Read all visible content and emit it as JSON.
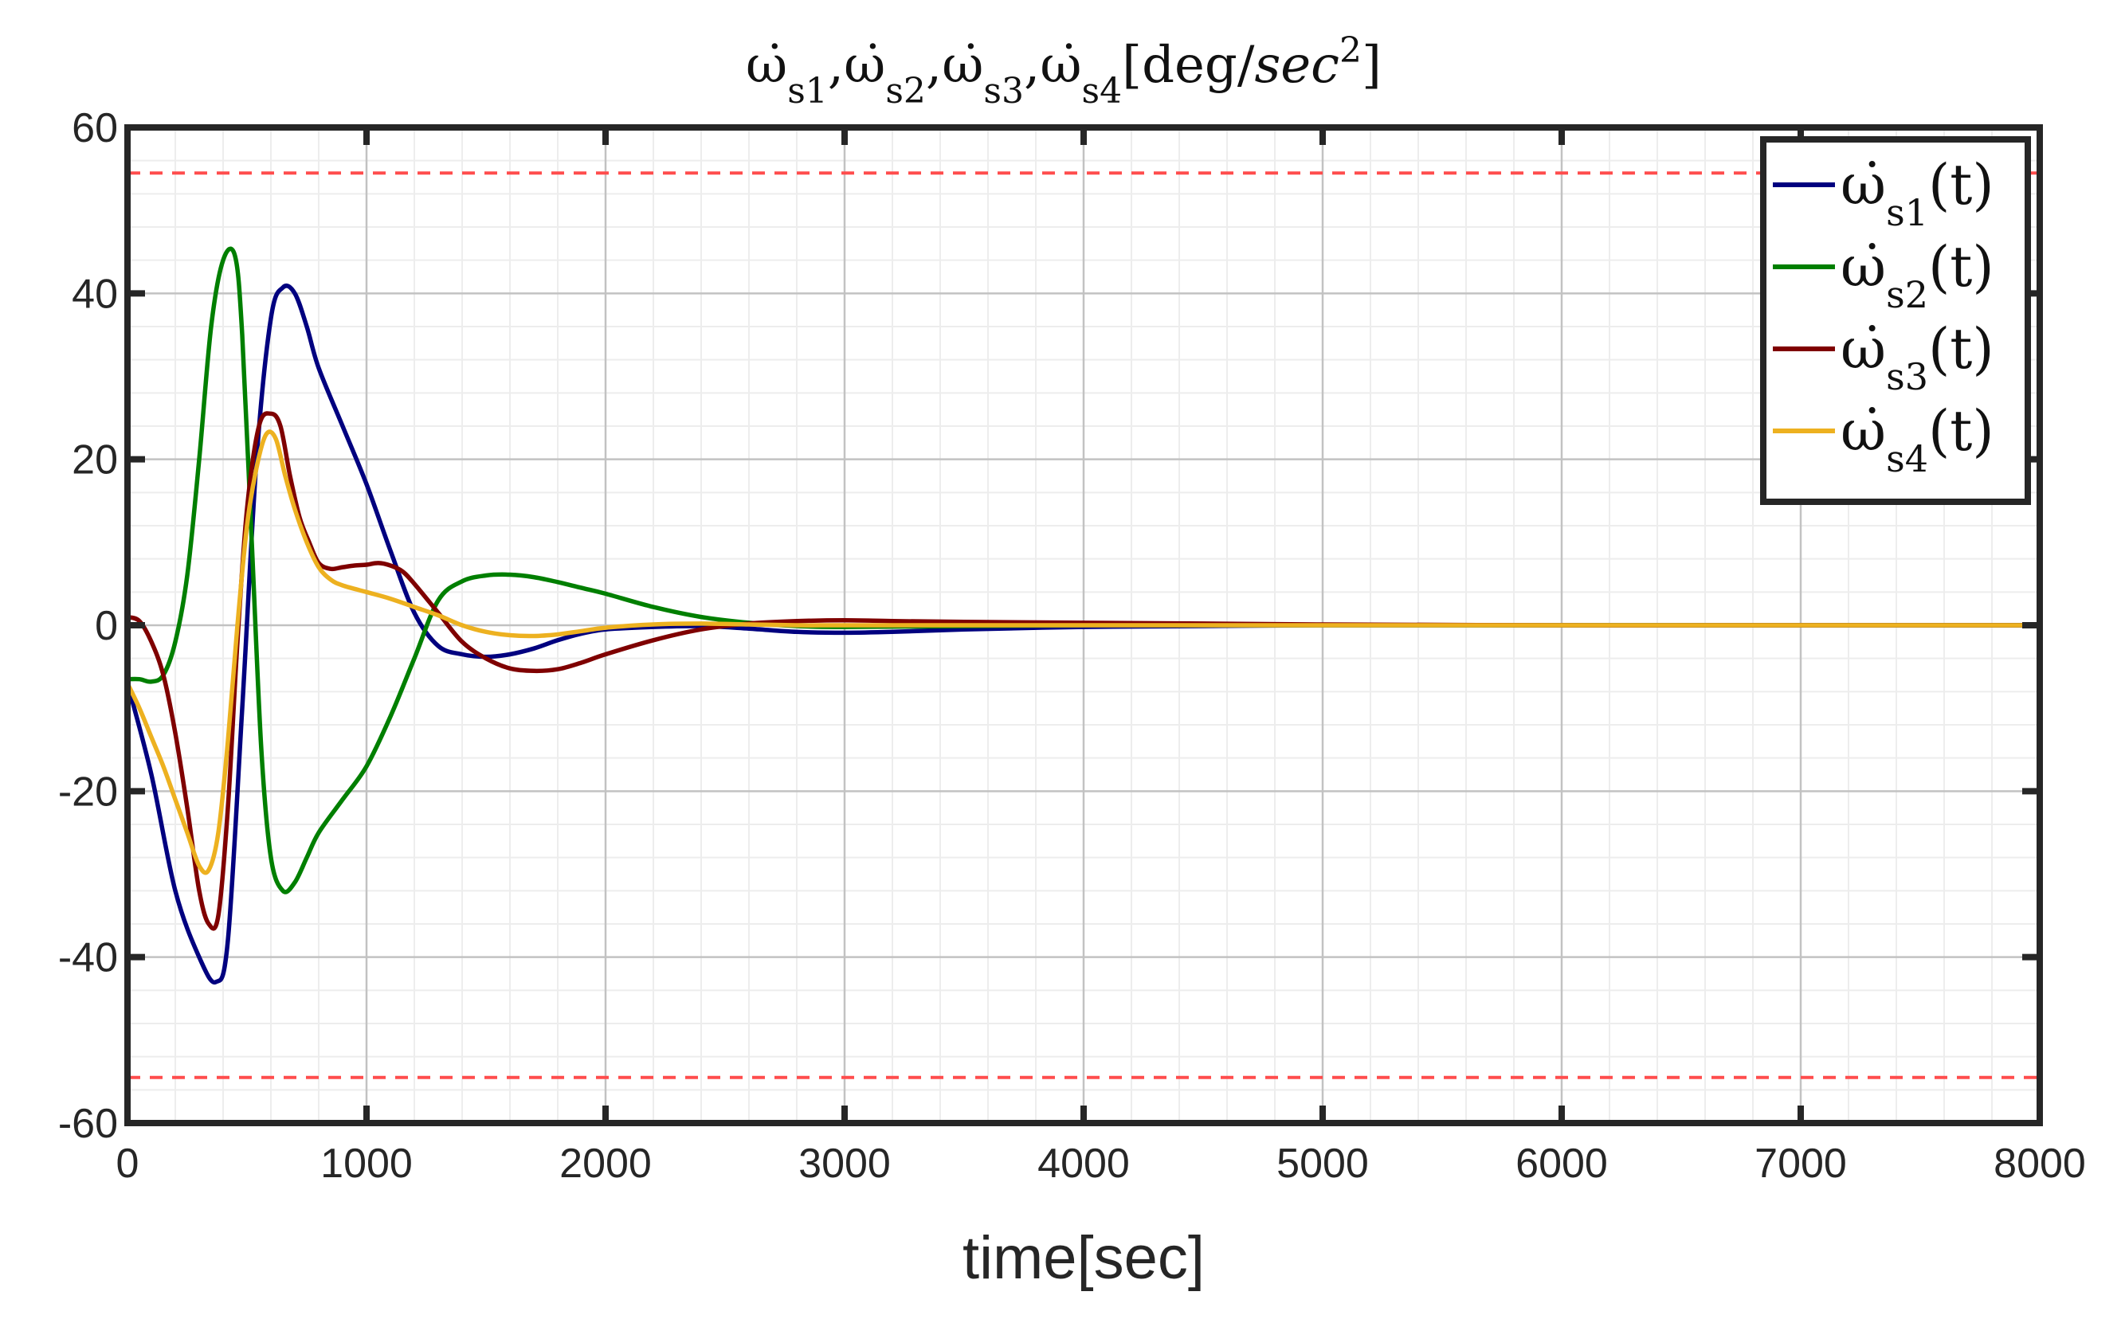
{
  "chart_data": {
    "type": "line",
    "title_parts": [
      "ω̇",
      "s1",
      ",",
      "ω̇",
      "s2",
      ",",
      "ω̇",
      "s3",
      ",",
      "ω̇",
      "s4",
      "[deg/",
      "sec",
      "2",
      "]"
    ],
    "xlabel": "time[sec]",
    "ylabel": "",
    "xlim": [
      0,
      8000
    ],
    "ylim": [
      -60,
      60
    ],
    "xticks": [
      0,
      1000,
      2000,
      3000,
      4000,
      5000,
      6000,
      7000,
      8000
    ],
    "yticks": [
      -60,
      -40,
      -20,
      0,
      20,
      40,
      60
    ],
    "grid": true,
    "minor_grid": true,
    "legend_position": "top-right",
    "limits": {
      "values": [
        54.5,
        -54.5
      ],
      "color": "#ff4d4d",
      "style": "dashed"
    },
    "series": [
      {
        "name": "ω̇_s1(t)",
        "legend_parts": [
          "ω̇",
          "s1",
          "(t)"
        ],
        "color": "#00007f",
        "x": [
          0,
          100,
          200,
          300,
          370,
          420,
          480,
          540,
          600,
          650,
          700,
          750,
          800,
          900,
          1000,
          1100,
          1200,
          1300,
          1400,
          1500,
          1600,
          1700,
          1800,
          1900,
          2000,
          2200,
          2400,
          2600,
          2800,
          3000,
          3200,
          3500,
          4000,
          4500,
          5000,
          6000,
          7000,
          8000
        ],
        "y": [
          -7,
          -18,
          -32,
          -40,
          -43,
          -38,
          -10,
          20,
          37,
          40.7,
          40,
          36,
          31,
          24,
          17,
          9,
          1.5,
          -2.5,
          -3.5,
          -3.8,
          -3.5,
          -2.8,
          -1.8,
          -1.0,
          -0.5,
          -0.2,
          -0.1,
          -0.4,
          -0.8,
          -0.9,
          -0.8,
          -0.5,
          -0.2,
          -0.1,
          0,
          0,
          0,
          0
        ]
      },
      {
        "name": "ω̇_s2(t)",
        "legend_parts": [
          "ω̇",
          "s2",
          "(t)"
        ],
        "color": "#007f00",
        "x": [
          0,
          50,
          100,
          150,
          200,
          250,
          300,
          350,
          400,
          450,
          480,
          520,
          560,
          600,
          650,
          700,
          750,
          800,
          900,
          1000,
          1100,
          1200,
          1300,
          1400,
          1500,
          1600,
          1700,
          1800,
          1900,
          2000,
          2200,
          2400,
          2600,
          2800,
          3000,
          3500,
          4000,
          4500,
          5000,
          6000,
          7000,
          8000
        ],
        "y": [
          -6.5,
          -6.5,
          -6.8,
          -6,
          -2,
          6,
          20,
          36,
          44,
          44.5,
          35,
          10,
          -15,
          -28,
          -32,
          -31,
          -28,
          -25,
          -21,
          -17,
          -11,
          -4,
          3,
          5.3,
          6,
          6.1,
          5.8,
          5.2,
          4.5,
          3.8,
          2.2,
          1.0,
          0.3,
          -0.1,
          -0.2,
          -0.1,
          0,
          0,
          0,
          0,
          0,
          0
        ]
      },
      {
        "name": "ω̇_s3(t)",
        "legend_parts": [
          "ω̇",
          "s3",
          "(t)"
        ],
        "color": "#7f0000",
        "x": [
          0,
          50,
          100,
          150,
          200,
          250,
          300,
          340,
          380,
          420,
          460,
          500,
          550,
          600,
          640,
          680,
          720,
          760,
          800,
          850,
          900,
          950,
          1000,
          1050,
          1100,
          1150,
          1200,
          1300,
          1400,
          1500,
          1600,
          1700,
          1800,
          1900,
          2000,
          2200,
          2400,
          2600,
          2800,
          3000,
          3200,
          3500,
          4000,
          4500,
          5000,
          6000,
          7000,
          8000
        ],
        "y": [
          1,
          0.5,
          -2,
          -6,
          -13,
          -22,
          -32,
          -36,
          -35,
          -22,
          -2,
          14,
          24,
          25.5,
          24,
          18,
          13,
          10,
          7.5,
          6.8,
          7,
          7.2,
          7.3,
          7.5,
          7.2,
          6.5,
          5,
          1.5,
          -2,
          -4,
          -5.2,
          -5.5,
          -5.3,
          -4.5,
          -3.5,
          -1.8,
          -0.5,
          0.2,
          0.5,
          0.6,
          0.5,
          0.4,
          0.3,
          0.2,
          0.1,
          0,
          0,
          0
        ]
      },
      {
        "name": "ω̇_s4(t)",
        "legend_parts": [
          "ω̇",
          "s4",
          "(t)"
        ],
        "color": "#edb120",
        "x": [
          0,
          50,
          100,
          150,
          200,
          250,
          300,
          340,
          380,
          420,
          460,
          500,
          540,
          580,
          620,
          660,
          700,
          750,
          800,
          850,
          900,
          1000,
          1100,
          1200,
          1300,
          1400,
          1500,
          1600,
          1700,
          1800,
          1900,
          2000,
          2200,
          2400,
          2600,
          2800,
          3000,
          3500,
          4000,
          5000,
          6000,
          7000,
          8000
        ],
        "y": [
          -7,
          -10,
          -13.5,
          -17,
          -21,
          -25,
          -29,
          -29.5,
          -25,
          -14,
          0,
          12,
          19,
          23,
          22.5,
          18,
          14,
          10,
          7,
          5.5,
          4.8,
          4,
          3.2,
          2.2,
          1.2,
          0,
          -0.8,
          -1.2,
          -1.3,
          -1.1,
          -0.7,
          -0.3,
          0.1,
          0.2,
          0.1,
          0,
          0,
          0,
          0,
          0,
          0,
          0,
          0
        ]
      }
    ]
  }
}
